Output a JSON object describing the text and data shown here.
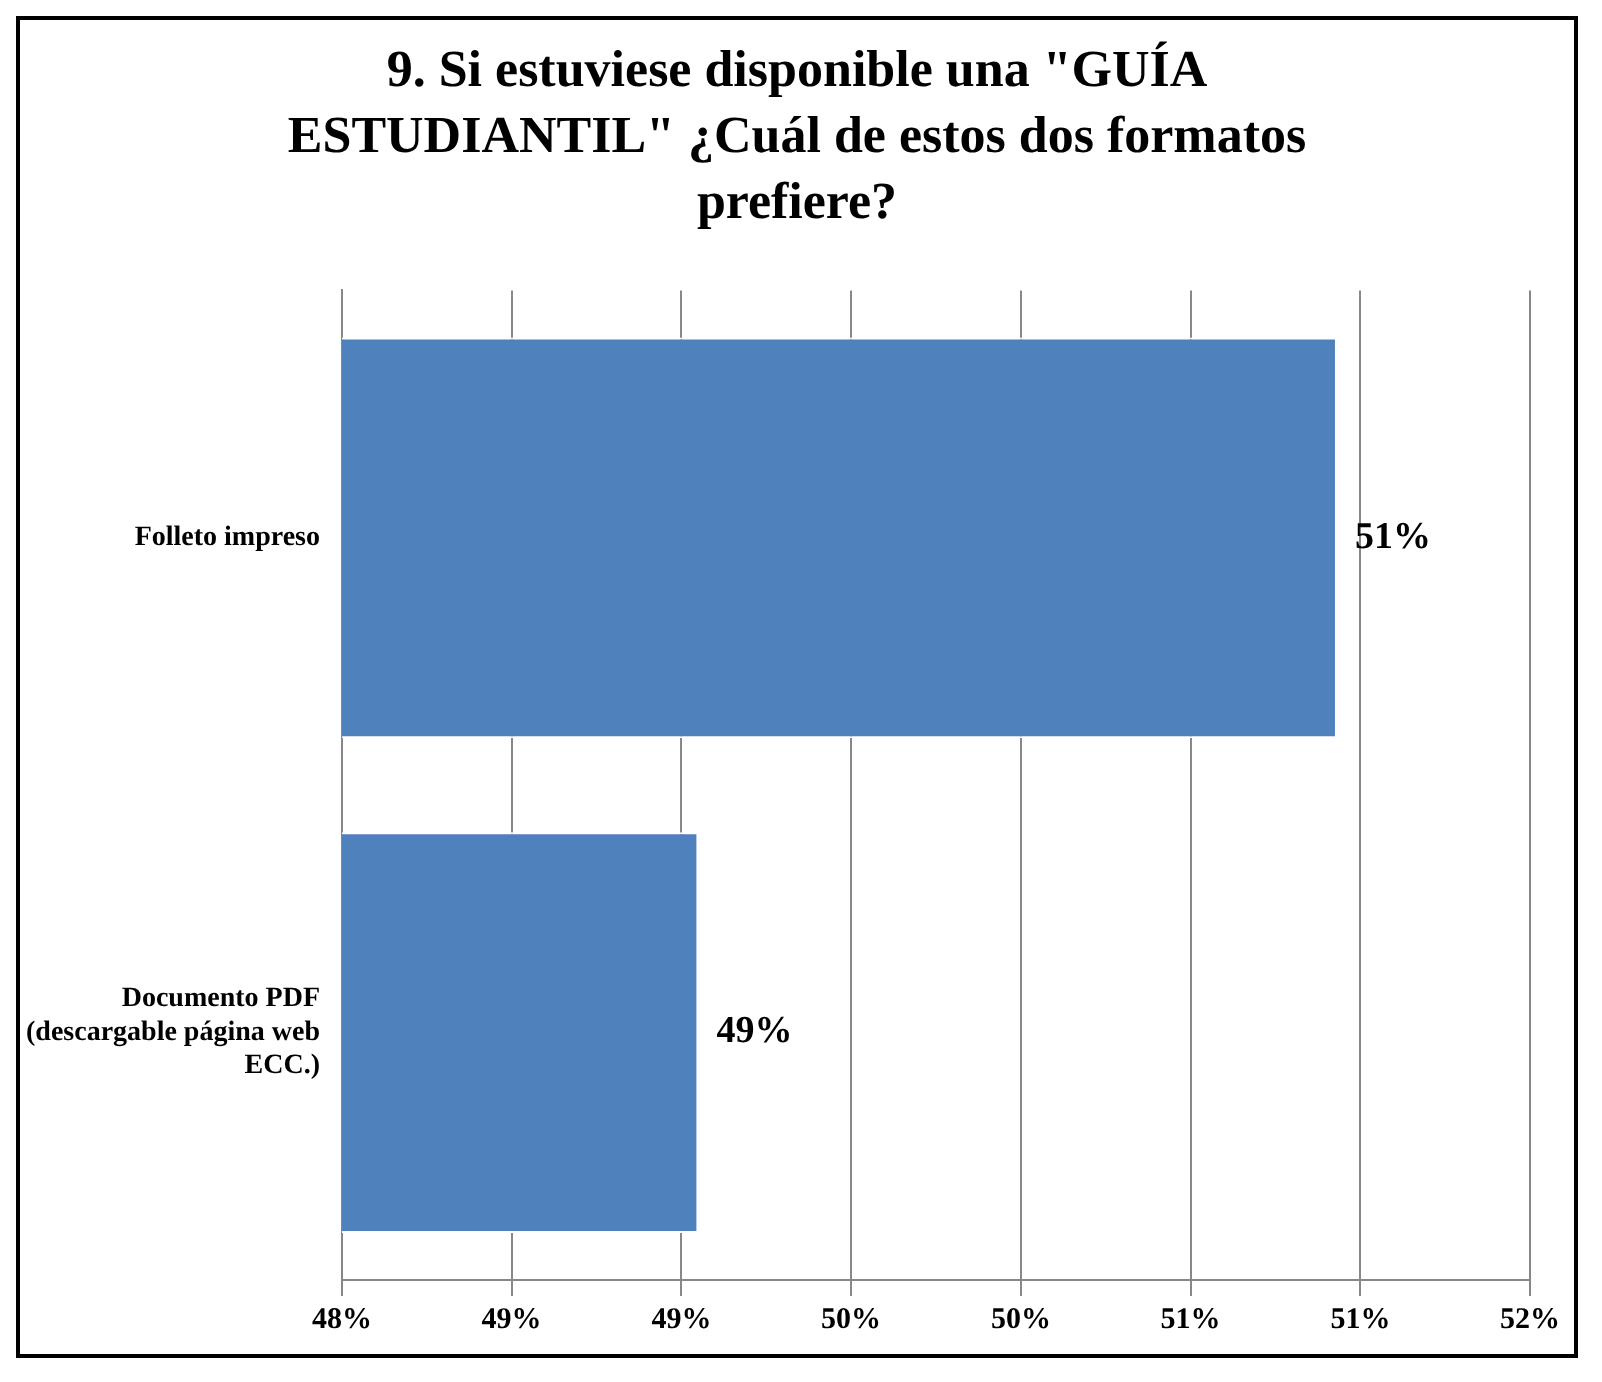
{
  "chart_data": {
    "type": "bar",
    "orientation": "horizontal",
    "title": "9. Si estuviese disponible una \"GUÍA ESTUDIANTIL\"   ¿Cuál de estos dos formatos prefiere?",
    "categories": [
      "Folleto impreso",
      "Documento PDF (descargable página web ECC.)"
    ],
    "values": [
      51.35,
      49.2
    ],
    "value_labels": [
      "51%",
      "49%"
    ],
    "color": "#4f81bd",
    "xlim": [
      48,
      52
    ],
    "xticks": [
      {
        "value": 48,
        "label": "48%"
      },
      {
        "value": 48.571,
        "label": "49%"
      },
      {
        "value": 49.143,
        "label": "49%"
      },
      {
        "value": 49.714,
        "label": "50%"
      },
      {
        "value": 50.286,
        "label": "50%"
      },
      {
        "value": 50.857,
        "label": "51%"
      },
      {
        "value": 51.429,
        "label": "51%"
      },
      {
        "value": 52,
        "label": "52%"
      }
    ],
    "grid": "x",
    "legend": false
  }
}
